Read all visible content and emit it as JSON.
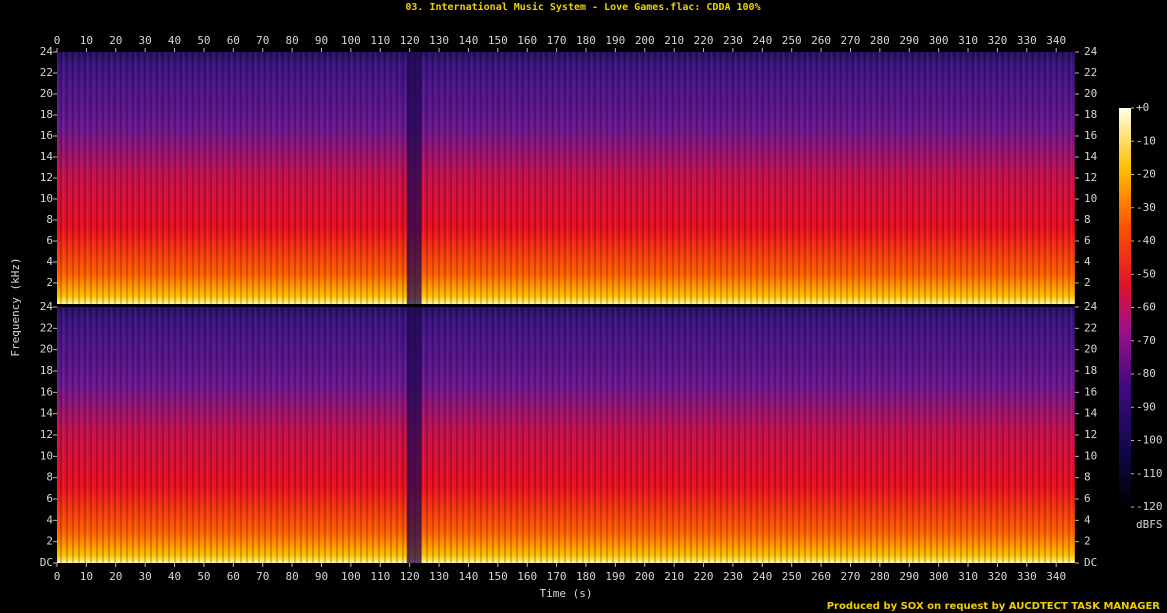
{
  "chart_data": [
    {
      "type": "spectrogram",
      "title": "03. International Music System - Love Games.flac: CDDA 100%",
      "ylabel": "Frequency (kHz)",
      "xlim": [
        0,
        346.4
      ],
      "xticks": [
        0,
        10,
        20,
        30,
        40,
        50,
        60,
        70,
        80,
        90,
        100,
        110,
        120,
        130,
        140,
        150,
        160,
        170,
        180,
        190,
        200,
        210,
        220,
        230,
        240,
        250,
        260,
        270,
        280,
        290,
        300,
        310,
        320,
        330,
        340
      ],
      "ylim": [
        0,
        24
      ],
      "yticks": [
        2,
        4,
        6,
        8,
        10,
        12,
        14,
        16,
        18,
        20,
        22,
        24
      ]
    },
    {
      "type": "spectrogram",
      "xlabel": "Time (s)",
      "xlim": [
        0,
        346.4
      ],
      "xticks": [
        0,
        10,
        20,
        30,
        40,
        50,
        60,
        70,
        80,
        90,
        100,
        110,
        120,
        130,
        140,
        150,
        160,
        170,
        180,
        190,
        200,
        210,
        220,
        230,
        240,
        250,
        260,
        270,
        280,
        290,
        300,
        310,
        320,
        330,
        340
      ],
      "ylim": [
        0,
        24
      ],
      "yticks": [
        {
          "value": 0,
          "label": "DC"
        },
        2,
        4,
        6,
        8,
        10,
        12,
        14,
        16,
        18,
        20,
        22,
        24
      ]
    }
  ],
  "colorbar": {
    "label": "dBFS",
    "lim": [
      -120,
      0
    ],
    "ticks": [
      {
        "value": 0,
        "label": "+0"
      },
      -10,
      -20,
      -30,
      -40,
      -50,
      -60,
      -70,
      -80,
      -90,
      -100,
      -110,
      -120
    ]
  },
  "footer": "Produced by SOX on request by AUCDTECT TASK MANAGER"
}
